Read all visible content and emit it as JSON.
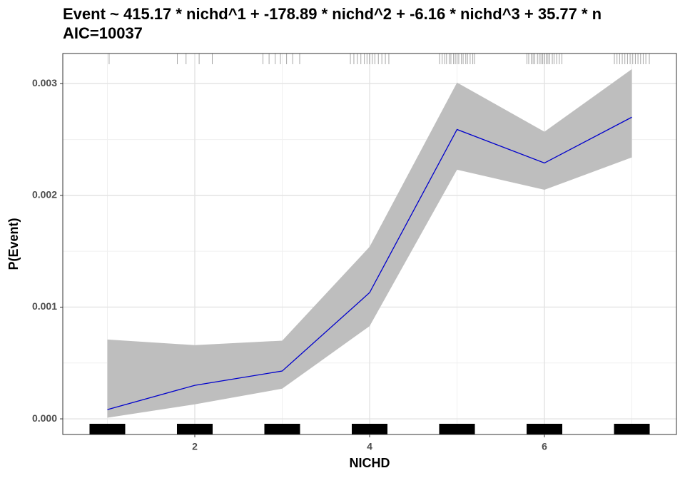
{
  "chart_data": {
    "type": "line",
    "title": "Event ~ 415.17 * nichd^1 + -178.89 * nichd^2 + -6.16 * nichd^3 + 35.77 * n",
    "subtitle": "AIC=10037",
    "x_label": "NICHD",
    "y_label": "P(Event)",
    "x": [
      1,
      2,
      3,
      4,
      5,
      6,
      7
    ],
    "series": [
      {
        "color": "#0000cc",
        "values": [
          8.3e-05,
          0.0003,
          0.000428,
          0.00113,
          0.00259,
          0.00229,
          0.0027
        ],
        "lower": [
          1e-05,
          0.00013,
          0.00027,
          0.00083,
          0.00223,
          0.00205,
          0.00234
        ],
        "upper": [
          0.00071,
          0.00066,
          0.0007,
          0.00154,
          0.00301,
          0.00257,
          0.00313
        ],
        "band_color": "#bebebe"
      }
    ],
    "rug": [
      1.02,
      1.8,
      1.9,
      2.05,
      2.2,
      2.78,
      2.85,
      2.92,
      2.98,
      3.05,
      3.12,
      3.2,
      3.78,
      3.82,
      3.86,
      3.9,
      3.94,
      3.97,
      4.0,
      4.03,
      4.06,
      4.1,
      4.14,
      4.18,
      4.22,
      4.8,
      4.83,
      4.86,
      4.88,
      4.91,
      4.93,
      4.96,
      4.98,
      5.0,
      5.02,
      5.05,
      5.07,
      5.1,
      5.12,
      5.15,
      5.18,
      5.2,
      5.8,
      5.82,
      5.85,
      5.87,
      5.89,
      5.92,
      5.94,
      5.96,
      5.98,
      6.0,
      6.02,
      6.04,
      6.06,
      6.09,
      6.11,
      6.14,
      6.17,
      6.2,
      6.8,
      6.83,
      6.86,
      6.89,
      6.92,
      6.95,
      6.98,
      7.01,
      7.04,
      7.07,
      7.1,
      7.13,
      7.16,
      7.2
    ],
    "xlim": [
      0.49,
      7.51
    ],
    "ylim": [
      -0.00014,
      0.00327
    ],
    "xticks": [
      2,
      4,
      6
    ],
    "yticks": [
      {
        "value": 0,
        "label": "0.000"
      },
      {
        "value": 0.001,
        "label": "0.001"
      },
      {
        "value": 0.002,
        "label": "0.002"
      },
      {
        "value": 0.003,
        "label": "0.003"
      }
    ],
    "x_minor_grid": [
      1,
      3,
      5,
      7
    ],
    "y_minor_grid": [
      0.0005,
      0.0015,
      0.0025
    ],
    "grid": true
  }
}
